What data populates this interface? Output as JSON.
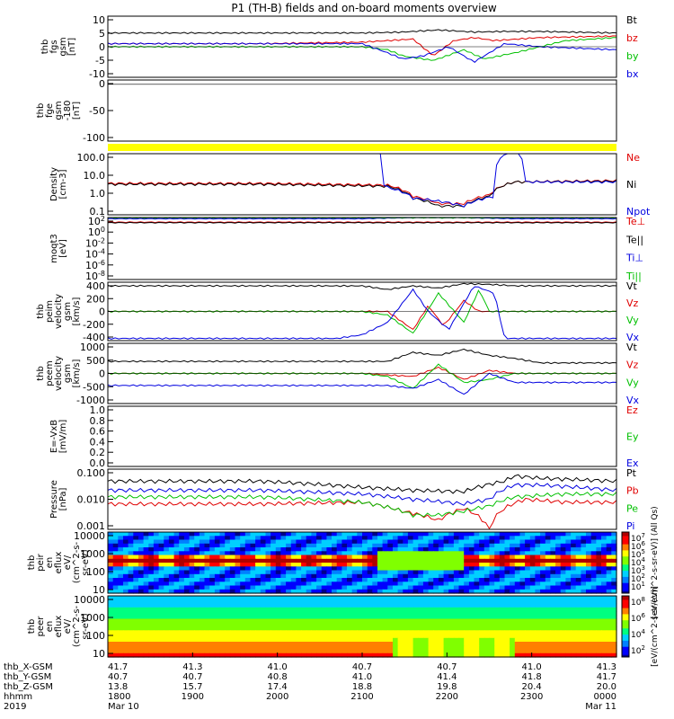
{
  "title": "P1 (TH-B) fields and on-board moments overview",
  "colors": {
    "black": "#000000",
    "red": "#e00000",
    "green": "#00c000",
    "blue": "#0000e0",
    "yellow": "#ffff00"
  },
  "chart_data": [
    {
      "type": "line",
      "ylabel": [
        "thb",
        "fgs",
        "gsm",
        "[nT]"
      ],
      "ylim": [
        -10,
        10
      ],
      "ticks": [
        "10",
        "5",
        "0",
        "-5",
        "-10"
      ],
      "legend": [
        {
          "label": "Bt",
          "color": "black"
        },
        {
          "label": "bz",
          "color": "red"
        },
        {
          "label": "by",
          "color": "green"
        },
        {
          "label": "bx",
          "color": "blue"
        }
      ],
      "series": [
        {
          "name": "Bt",
          "color": "black",
          "x": [
            0,
            0.3,
            0.5,
            0.58,
            0.65,
            0.72,
            0.78,
            0.85,
            1
          ],
          "y": [
            4.5,
            4.5,
            4.5,
            4.8,
            5.5,
            4.8,
            5,
            5,
            4.5
          ]
        },
        {
          "name": "bz",
          "color": "red",
          "x": [
            0,
            0.3,
            0.5,
            0.55,
            0.6,
            0.64,
            0.68,
            0.72,
            0.76,
            0.85,
            1
          ],
          "y": [
            1,
            1,
            1.5,
            2,
            2.5,
            -3,
            2,
            3,
            2,
            3,
            3.5
          ]
        },
        {
          "name": "by",
          "color": "green",
          "x": [
            0,
            0.5,
            0.55,
            0.58,
            0.64,
            0.7,
            0.74,
            0.8,
            0.9,
            1
          ],
          "y": [
            0,
            0,
            -1,
            -3,
            -4.5,
            -1,
            -4,
            -2,
            2,
            3
          ]
        },
        {
          "name": "bx",
          "color": "blue",
          "x": [
            0,
            0.5,
            0.55,
            0.58,
            0.62,
            0.67,
            0.72,
            0.78,
            0.85,
            1
          ],
          "y": [
            1,
            1,
            -2,
            -4,
            -3,
            0,
            -5,
            1,
            0,
            -1
          ]
        }
      ]
    },
    {
      "type": "line",
      "ylabel": [
        "thb",
        "fge",
        "gsm",
        "-180",
        "[nT]"
      ],
      "ylim": [
        -130,
        10
      ],
      "ticks": [
        "0",
        "-50",
        "-100"
      ],
      "legend": [],
      "series": []
    },
    {
      "type": "bar",
      "ylabel": [],
      "legend": [],
      "series": []
    },
    {
      "type": "line",
      "ylabel": [
        "Density",
        "[cm-3]"
      ],
      "ylim": [
        0.1,
        200
      ],
      "scale": "log",
      "ticks": [
        "100.0",
        "10.0",
        "1.0",
        "0.1"
      ],
      "legend": [
        {
          "label": "Ne",
          "color": "red"
        },
        {
          "label": "Ni",
          "color": "black"
        },
        {
          "label": "Npot",
          "color": "blue"
        }
      ],
      "series": [
        {
          "name": "Ne",
          "color": "red",
          "x": [
            0,
            0.3,
            0.55,
            0.6,
            0.65,
            0.7,
            0.75,
            0.8,
            1
          ],
          "y": [
            5,
            5,
            4,
            1,
            0.4,
            0.4,
            1.2,
            6,
            7
          ]
        },
        {
          "name": "Ni",
          "color": "black",
          "x": [
            0,
            0.3,
            0.55,
            0.6,
            0.65,
            0.7,
            0.75,
            0.8,
            1
          ],
          "y": [
            4.5,
            4.5,
            3.5,
            0.8,
            0.3,
            0.3,
            1,
            6,
            6.5
          ]
        },
        {
          "name": "Npot",
          "color": "blue",
          "x": [
            0.535,
            0.54,
            0.55,
            0.6,
            0.7,
            0.76,
            0.8,
            0.82
          ],
          "y": [
            400,
            5,
            3,
            0.8,
            0.3,
            1,
            400,
            6
          ]
        }
      ]
    },
    {
      "type": "line",
      "ylabel": [
        "moqt3",
        "[eV]"
      ],
      "ticks": [
        "10^2",
        "10^0",
        "10^-2",
        "10^-4",
        "10^-6",
        "10^-8"
      ],
      "legend": [
        {
          "label": "Te⊥",
          "color": "red"
        },
        {
          "label": "Te||",
          "color": "black"
        },
        {
          "label": "Ti⊥",
          "color": "blue"
        },
        {
          "label": "Ti||",
          "color": "green"
        }
      ],
      "series": [
        {
          "name": "Te⊥",
          "color": "red",
          "x": [
            0,
            1
          ],
          "y": [
            150,
            150
          ]
        },
        {
          "name": "Te||",
          "color": "black",
          "x": [
            0,
            1
          ],
          "y": [
            120,
            120
          ]
        },
        {
          "name": "Ti⊥",
          "color": "blue",
          "x": [
            0.5,
            0.6,
            0.7,
            0.8
          ],
          "y": [
            600,
            900,
            900,
            600
          ]
        },
        {
          "name": "Ti||",
          "color": "green",
          "x": [
            0,
            1
          ],
          "y": [
            900,
            900
          ]
        }
      ]
    },
    {
      "type": "line",
      "ylabel": [
        "thb",
        "peim",
        "velocity",
        "gsm",
        "[km/s]"
      ],
      "ylim": [
        -400,
        400
      ],
      "ticks": [
        "400",
        "200",
        "0",
        "-200",
        "-400"
      ],
      "legend": [
        {
          "label": "Vt",
          "color": "black"
        },
        {
          "label": "Vz",
          "color": "red"
        },
        {
          "label": "Vy",
          "color": "green"
        },
        {
          "label": "Vx",
          "color": "blue"
        }
      ],
      "series": [
        {
          "name": "Vt",
          "color": "black",
          "x": [
            0,
            0.3,
            0.5,
            0.55,
            0.6,
            0.65,
            0.7,
            0.75,
            0.8,
            1
          ],
          "y": [
            350,
            350,
            350,
            300,
            350,
            320,
            380,
            370,
            350,
            350
          ]
        },
        {
          "name": "Vz",
          "color": "red",
          "x": [
            0,
            0.5,
            0.55,
            0.6,
            0.63,
            0.66,
            0.7,
            0.73,
            0.75,
            1
          ],
          "y": [
            0,
            0,
            0,
            -250,
            80,
            -200,
            150,
            0,
            0,
            0
          ]
        },
        {
          "name": "Vy",
          "color": "green",
          "x": [
            0,
            0.5,
            0.55,
            0.6,
            0.65,
            0.7,
            0.73,
            0.75,
            1
          ],
          "y": [
            0,
            0,
            -50,
            -300,
            250,
            -150,
            300,
            0,
            0
          ]
        },
        {
          "name": "Vx",
          "color": "blue",
          "x": [
            0,
            0.45,
            0.5,
            0.55,
            0.6,
            0.63,
            0.67,
            0.72,
            0.76,
            0.78,
            1
          ],
          "y": [
            -370,
            -370,
            -320,
            -150,
            300,
            0,
            -250,
            350,
            250,
            -370,
            -370
          ]
        }
      ]
    },
    {
      "type": "line",
      "ylabel": [
        "thb",
        "peem",
        "velocity",
        "gsm",
        "[km/s]"
      ],
      "ylim": [
        -1000,
        1000
      ],
      "ticks": [
        "1000",
        "500",
        "0",
        "-500",
        "-1000"
      ],
      "legend": [
        {
          "label": "Vt",
          "color": "black"
        },
        {
          "label": "Vz",
          "color": "red"
        },
        {
          "label": "Vy",
          "color": "green"
        },
        {
          "label": "Vx",
          "color": "blue"
        }
      ],
      "series": [
        {
          "name": "Vt",
          "color": "black",
          "x": [
            0,
            0.5,
            0.55,
            0.6,
            0.65,
            0.7,
            0.75,
            0.8,
            0.85,
            1
          ],
          "y": [
            400,
            400,
            400,
            700,
            600,
            800,
            600,
            500,
            350,
            350
          ]
        },
        {
          "name": "Vz",
          "color": "red",
          "x": [
            0,
            0.5,
            0.55,
            0.6,
            0.65,
            0.7,
            0.75,
            0.8,
            1
          ],
          "y": [
            0,
            0,
            -50,
            -100,
            200,
            -200,
            100,
            0,
            0
          ]
        },
        {
          "name": "Vy",
          "color": "green",
          "x": [
            0,
            0.5,
            0.55,
            0.6,
            0.65,
            0.7,
            0.75,
            0.8,
            1
          ],
          "y": [
            0,
            0,
            -100,
            -500,
            300,
            -300,
            -200,
            0,
            0
          ]
        },
        {
          "name": "Vx",
          "color": "blue",
          "x": [
            0,
            0.55,
            0.6,
            0.65,
            0.7,
            0.75,
            0.8,
            1
          ],
          "y": [
            -400,
            -400,
            -500,
            -200,
            -700,
            0,
            -300,
            -300
          ]
        }
      ]
    },
    {
      "type": "line",
      "ylabel": [
        "E=-VxB",
        "[mV/m]"
      ],
      "ylim": [
        0,
        1
      ],
      "ticks": [
        "1.0",
        "0.8",
        "0.6",
        "0.4",
        "0.2",
        "0.0"
      ],
      "legend": [
        {
          "label": "Ez",
          "color": "red"
        },
        {
          "label": "Ey",
          "color": "green"
        },
        {
          "label": "Ex",
          "color": "blue"
        }
      ],
      "series": []
    },
    {
      "type": "line",
      "ylabel": [
        "Pressure",
        "[nPa]"
      ],
      "ylim": [
        0.001,
        0.1
      ],
      "scale": "log",
      "ticks": [
        "0.100",
        "0.010",
        "0.001"
      ],
      "legend": [
        {
          "label": "Pt",
          "color": "black"
        },
        {
          "label": "Pb",
          "color": "red"
        },
        {
          "label": "Pe",
          "color": "green"
        },
        {
          "label": "Pi",
          "color": "blue"
        }
      ],
      "series": [
        {
          "name": "Pt",
          "color": "black",
          "x": [
            0,
            0.3,
            0.5,
            0.6,
            0.7,
            0.78,
            0.8,
            0.85,
            1
          ],
          "y": [
            0.04,
            0.04,
            0.025,
            0.02,
            0.018,
            0.04,
            0.06,
            0.05,
            0.04
          ]
        },
        {
          "name": "Pb",
          "color": "red",
          "x": [
            0,
            0.3,
            0.5,
            0.58,
            0.65,
            0.7,
            0.75,
            0.78,
            0.82,
            0.9,
            1
          ],
          "y": [
            0.007,
            0.007,
            0.008,
            0.004,
            0.002,
            0.005,
            0.001,
            0.005,
            0.01,
            0.008,
            0.008
          ]
        },
        {
          "name": "Pe",
          "color": "green",
          "x": [
            0,
            0.3,
            0.5,
            0.6,
            0.65,
            0.7,
            0.75,
            0.8,
            0.9,
            1
          ],
          "y": [
            0.012,
            0.012,
            0.008,
            0.003,
            0.003,
            0.004,
            0.006,
            0.012,
            0.015,
            0.015
          ]
        },
        {
          "name": "Pi",
          "color": "blue",
          "x": [
            0,
            0.3,
            0.5,
            0.6,
            0.7,
            0.75,
            0.8,
            0.85,
            1
          ],
          "y": [
            0.02,
            0.02,
            0.015,
            0.01,
            0.007,
            0.01,
            0.03,
            0.03,
            0.02
          ]
        }
      ]
    },
    {
      "type": "heatmap",
      "ylabel": [
        "thb",
        "peir",
        "en",
        "eflux",
        "eV/",
        "(cm^2-s-",
        "sr-eV)"
      ],
      "ticks": [
        "10000",
        "1000",
        "100",
        "10"
      ],
      "colorbar_ticks": [
        "10^7",
        "10^6",
        "10^5",
        "10^4",
        "10^3",
        "10^2",
        "10^1"
      ],
      "colorbar_label": "[eV/(cm^2-s-sr-eV)] (All Qs)"
    },
    {
      "type": "heatmap",
      "ylabel": [
        "thb",
        "peer",
        "en",
        "eflux",
        "eV/",
        "(cm^2-s-",
        "sr-eV)"
      ],
      "ticks": [
        "10000",
        "1000",
        "100",
        "10"
      ],
      "colorbar_ticks": [
        "10^8",
        "10^6",
        "10^4",
        "10^2"
      ],
      "colorbar_label": "[eV/(cm^2-s-sr-eV)]"
    }
  ],
  "xaxis": {
    "rows": [
      {
        "label": "thb_X-GSM",
        "values": [
          "41.7",
          "41.3",
          "41.0",
          "40.7",
          "40.7",
          "41.0",
          "41.3"
        ]
      },
      {
        "label": "thb_Y-GSM",
        "values": [
          "40.7",
          "40.7",
          "40.8",
          "41.0",
          "41.4",
          "41.8",
          "41.7"
        ]
      },
      {
        "label": "thb_Z-GSM",
        "values": [
          "13.8",
          "15.7",
          "17.4",
          "18.8",
          "19.8",
          "20.4",
          "20.0"
        ]
      },
      {
        "label": "hhmm",
        "values": [
          "1800",
          "1900",
          "2000",
          "2100",
          "2200",
          "2300",
          "0000"
        ]
      },
      {
        "label": "2019",
        "values": [
          "Mar 10",
          "",
          "",
          "",
          "",
          "",
          "Mar 11"
        ]
      }
    ]
  }
}
